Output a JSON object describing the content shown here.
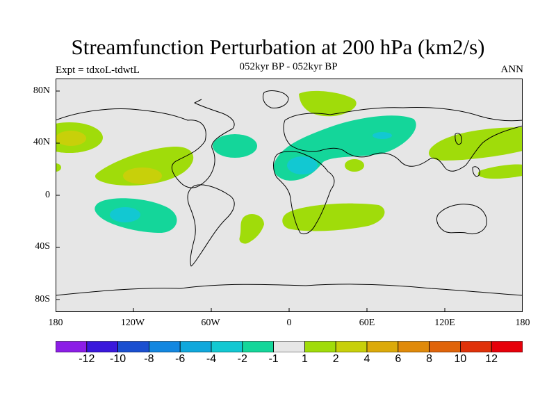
{
  "title": "Streamfunction Perturbation at 200 hPa (km2/s)",
  "subtitle": "052kyr BP - 052kyr BP",
  "left_label": "Expt = tdxoL-tdwtL",
  "right_label": "ANN",
  "lat_labels": [
    "80N",
    "40N",
    "0",
    "40S",
    "80S"
  ],
  "lon_labels": [
    "180",
    "120W",
    "60W",
    "0",
    "60E",
    "120E",
    "180"
  ],
  "colorbar": {
    "labels": [
      "-12",
      "-10",
      "-8",
      "-6",
      "-4",
      "-2",
      "-1",
      "1",
      "2",
      "4",
      "6",
      "8",
      "10",
      "12"
    ],
    "colors": [
      "#8c1ee6",
      "#3a18dc",
      "#1a4fd0",
      "#1387e0",
      "#10a8dc",
      "#12c8d2",
      "#14d69a",
      "#e6e6e6",
      "#a0dc0a",
      "#c8d00a",
      "#dcaa0a",
      "#e08a0a",
      "#e0640a",
      "#e0320a",
      "#e6000a"
    ]
  },
  "colors": {
    "background": "#e6e6e6",
    "pos1": "#a0dc0a",
    "pos2": "#c8d00a",
    "neg1": "#14d69a",
    "neg2": "#12c8d2"
  }
}
